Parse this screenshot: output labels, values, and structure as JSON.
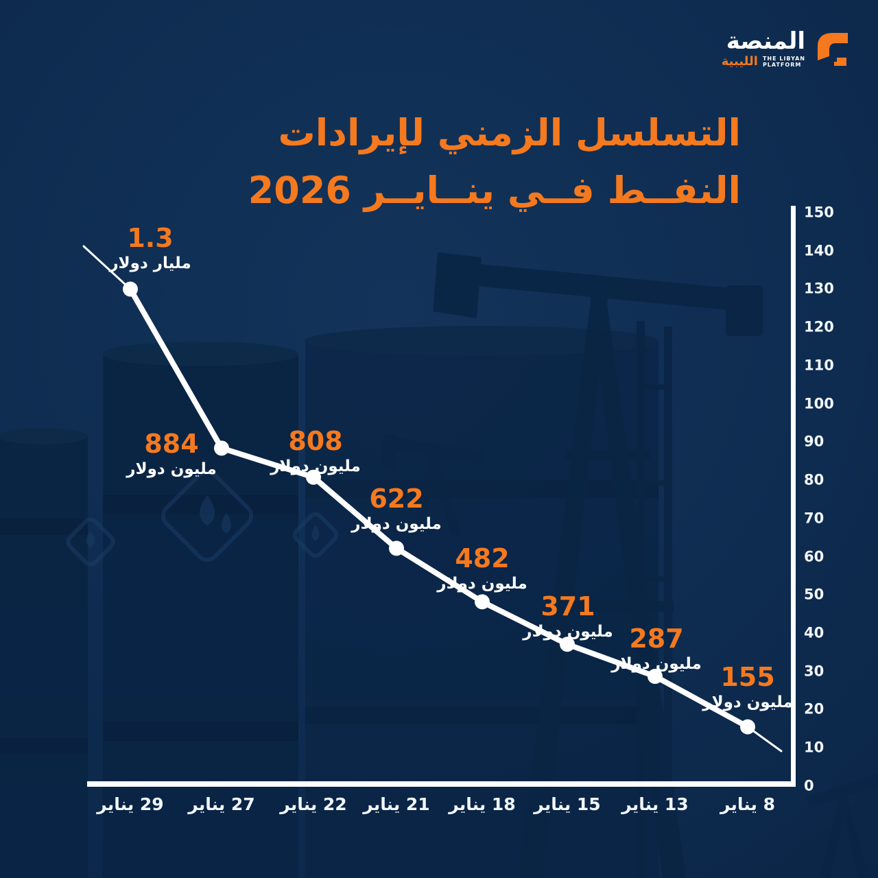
{
  "logo": {
    "name_ar": "المنصة",
    "region_ar": "الليبية",
    "tagline_line1": "THE LIBYAN",
    "tagline_line2": "PLATFORM"
  },
  "title": {
    "line1": "التسلسل الزمني لإيرادات",
    "line2": "النفــط فــي ينــايــر 2026"
  },
  "chart_data": {
    "type": "line",
    "title": "التسلسل الزمني لإيرادات النفط في يناير 2026",
    "categories": [
      "29 يناير",
      "27 يناير",
      "22 يناير",
      "21 يناير",
      "18 يناير",
      "15 يناير",
      "13 يناير",
      "8 يناير"
    ],
    "values_million_usd": [
      1300,
      884,
      808,
      622,
      482,
      371,
      287,
      155
    ],
    "point_labels": [
      {
        "value": "1.3",
        "unit": "مليار دولار"
      },
      {
        "value": "884",
        "unit": "مليون دولار"
      },
      {
        "value": "808",
        "unit": "مليون دولار"
      },
      {
        "value": "622",
        "unit": "مليون دولار"
      },
      {
        "value": "482",
        "unit": "مليون دولار"
      },
      {
        "value": "371",
        "unit": "مليون دولار"
      },
      {
        "value": "287",
        "unit": "مليون دولار"
      },
      {
        "value": "155",
        "unit": "مليون دولار"
      }
    ],
    "y_ticks": [
      150,
      140,
      130,
      120,
      110,
      100,
      90,
      80,
      70,
      60,
      50,
      40,
      30,
      20,
      10,
      0
    ],
    "ylim": [
      0,
      150
    ],
    "grid": false,
    "y_axis_position": "right",
    "x_axis_position": "bottom"
  },
  "colors": {
    "background": "#0E2C50",
    "accent": "#F5791E",
    "line": "#FFFFFF"
  }
}
